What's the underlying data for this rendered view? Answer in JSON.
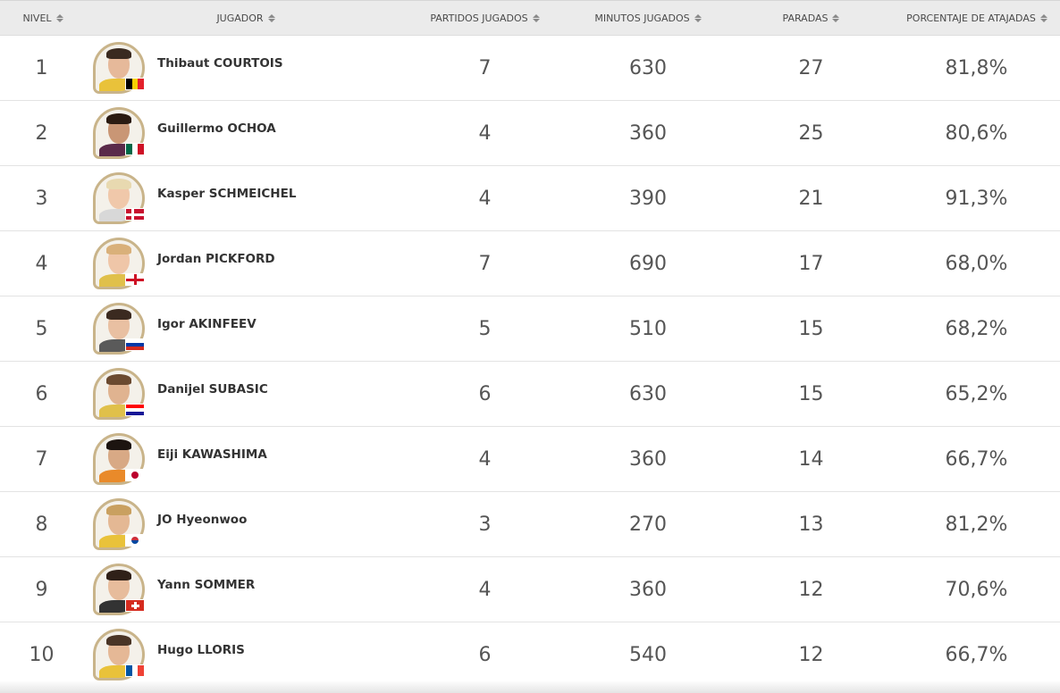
{
  "headers": {
    "rank": "NIVEL",
    "player": "JUGADOR",
    "matches": "PARTIDOS JUGADOS",
    "minutes": "MINUTOS JUGADOS",
    "saves": "PARADAS",
    "save_pct": "PORCENTAJE DE ATAJADAS"
  },
  "rows": [
    {
      "rank": "1",
      "name": "Thibaut COURTOIS",
      "matches": "7",
      "minutes": "630",
      "saves": "27",
      "pct": "81,8%",
      "flag": "belgium-flag-icon"
    },
    {
      "rank": "2",
      "name": "Guillermo OCHOA",
      "matches": "4",
      "minutes": "360",
      "saves": "25",
      "pct": "80,6%",
      "flag": "mexico-flag-icon"
    },
    {
      "rank": "3",
      "name": "Kasper SCHMEICHEL",
      "matches": "4",
      "minutes": "390",
      "saves": "21",
      "pct": "91,3%",
      "flag": "denmark-flag-icon"
    },
    {
      "rank": "4",
      "name": "Jordan PICKFORD",
      "matches": "7",
      "minutes": "690",
      "saves": "17",
      "pct": "68,0%",
      "flag": "england-flag-icon"
    },
    {
      "rank": "5",
      "name": "Igor AKINFEEV",
      "matches": "5",
      "minutes": "510",
      "saves": "15",
      "pct": "68,2%",
      "flag": "russia-flag-icon"
    },
    {
      "rank": "6",
      "name": "Danijel SUBASIC",
      "matches": "6",
      "minutes": "630",
      "saves": "15",
      "pct": "65,2%",
      "flag": "croatia-flag-icon"
    },
    {
      "rank": "7",
      "name": "Eiji KAWASHIMA",
      "matches": "4",
      "minutes": "360",
      "saves": "14",
      "pct": "66,7%",
      "flag": "japan-flag-icon"
    },
    {
      "rank": "8",
      "name": "JO Hyeonwoo",
      "matches": "3",
      "minutes": "270",
      "saves": "13",
      "pct": "81,2%",
      "flag": "korea-flag-icon"
    },
    {
      "rank": "9",
      "name": "Yann SOMMER",
      "matches": "4",
      "minutes": "360",
      "saves": "12",
      "pct": "70,6%",
      "flag": "switzerland-flag-icon"
    },
    {
      "rank": "10",
      "name": "Hugo LLORIS",
      "matches": "6",
      "minutes": "540",
      "saves": "12",
      "pct": "66,7%",
      "flag": "france-flag-icon"
    }
  ],
  "colors": {
    "header_bg": "#ebebeb",
    "avatar_ring": "#c9b48a",
    "text": "#555555"
  }
}
